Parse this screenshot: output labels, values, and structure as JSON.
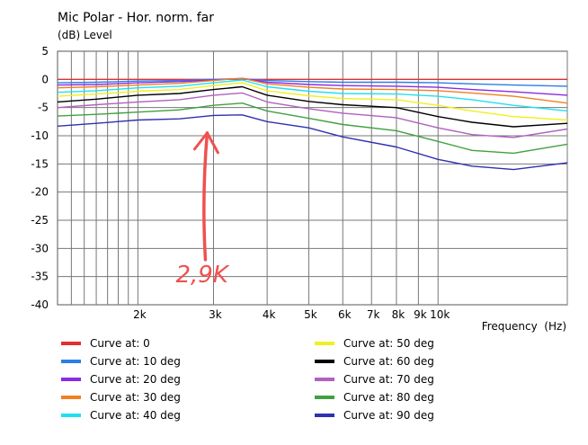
{
  "chart_data": {
    "type": "line",
    "title": "Mic Polar - Hor. norm. far",
    "ylabel": "(dB)  Level",
    "xlabel": "Frequency  (Hz)",
    "x_scale": "log",
    "xlim": [
      1300,
      20000
    ],
    "ylim": [
      -40,
      5
    ],
    "grid": true,
    "y_ticks": [
      5,
      0,
      -5,
      -10,
      -15,
      -20,
      -25,
      -30,
      -35,
      -40
    ],
    "x_tick_values": [
      2000,
      3000,
      4000,
      5000,
      6000,
      7000,
      8000,
      9000,
      10000
    ],
    "x_tick_labels": [
      "2k",
      "3k",
      "4k",
      "5k",
      "6k",
      "7k",
      "8k",
      "9k",
      "10k"
    ],
    "x_minor_ticks": [
      1400,
      1500,
      1600,
      1700,
      1800,
      1900,
      20000
    ],
    "legend_position": "bottom",
    "series": [
      {
        "name": "Curve at: 0",
        "color": "#e03030",
        "points": [
          [
            1300,
            0
          ],
          [
            2000,
            0
          ],
          [
            3000,
            0
          ],
          [
            4000,
            0
          ],
          [
            6000,
            0
          ],
          [
            10000,
            0
          ],
          [
            20000,
            0
          ]
        ]
      },
      {
        "name": "Curve at: 10 deg",
        "color": "#2a7ee6",
        "points": [
          [
            1300,
            -0.6
          ],
          [
            1600,
            -0.5
          ],
          [
            2000,
            -0.3
          ],
          [
            2500,
            -0.2
          ],
          [
            3000,
            0
          ],
          [
            3500,
            0.1
          ],
          [
            4000,
            -0.2
          ],
          [
            5000,
            -0.4
          ],
          [
            6000,
            -0.5
          ],
          [
            8000,
            -0.5
          ],
          [
            10000,
            -0.6
          ],
          [
            12000,
            -0.8
          ],
          [
            15000,
            -1.0
          ],
          [
            20000,
            -1.2
          ]
        ]
      },
      {
        "name": "Curve at: 20 deg",
        "color": "#8a2be2",
        "points": [
          [
            1300,
            -1.0
          ],
          [
            1600,
            -0.9
          ],
          [
            2000,
            -0.6
          ],
          [
            2500,
            -0.4
          ],
          [
            3000,
            -0.1
          ],
          [
            3500,
            0.2
          ],
          [
            4000,
            -0.5
          ],
          [
            5000,
            -0.9
          ],
          [
            6000,
            -1.1
          ],
          [
            8000,
            -1.2
          ],
          [
            10000,
            -1.4
          ],
          [
            12000,
            -1.8
          ],
          [
            15000,
            -2.2
          ],
          [
            20000,
            -2.8
          ]
        ]
      },
      {
        "name": "Curve at: 30 deg",
        "color": "#f08020",
        "points": [
          [
            1300,
            -1.5
          ],
          [
            1600,
            -1.3
          ],
          [
            2000,
            -1.0
          ],
          [
            2500,
            -0.7
          ],
          [
            3000,
            -0.2
          ],
          [
            3500,
            0.2
          ],
          [
            4000,
            -0.8
          ],
          [
            5000,
            -1.4
          ],
          [
            6000,
            -1.7
          ],
          [
            8000,
            -1.8
          ],
          [
            10000,
            -2.0
          ],
          [
            12000,
            -2.4
          ],
          [
            15000,
            -3.0
          ],
          [
            20000,
            -4.2
          ]
        ]
      },
      {
        "name": "Curve at: 40 deg",
        "color": "#20e0f0",
        "points": [
          [
            1300,
            -2.3
          ],
          [
            1600,
            -2.0
          ],
          [
            2000,
            -1.5
          ],
          [
            2500,
            -1.2
          ],
          [
            3000,
            -0.6
          ],
          [
            3500,
            -0.1
          ],
          [
            4000,
            -1.3
          ],
          [
            5000,
            -2.1
          ],
          [
            6000,
            -2.5
          ],
          [
            8000,
            -2.6
          ],
          [
            10000,
            -3.0
          ],
          [
            12000,
            -3.6
          ],
          [
            15000,
            -4.6
          ],
          [
            20000,
            -5.6
          ]
        ]
      },
      {
        "name": "Curve at: 50 deg",
        "color": "#f0f020",
        "points": [
          [
            1300,
            -3.0
          ],
          [
            1600,
            -2.6
          ],
          [
            2000,
            -2.1
          ],
          [
            2500,
            -1.8
          ],
          [
            3000,
            -1.1
          ],
          [
            3500,
            -0.6
          ],
          [
            4000,
            -2.0
          ],
          [
            5000,
            -2.9
          ],
          [
            6000,
            -3.4
          ],
          [
            8000,
            -3.6
          ],
          [
            10000,
            -4.6
          ],
          [
            12000,
            -5.6
          ],
          [
            15000,
            -6.6
          ],
          [
            20000,
            -7.2
          ]
        ]
      },
      {
        "name": "Curve at: 60 deg",
        "color": "#000000",
        "points": [
          [
            1300,
            -4.0
          ],
          [
            1600,
            -3.5
          ],
          [
            2000,
            -2.8
          ],
          [
            2500,
            -2.5
          ],
          [
            3000,
            -1.8
          ],
          [
            3500,
            -1.3
          ],
          [
            4000,
            -2.8
          ],
          [
            5000,
            -3.9
          ],
          [
            6000,
            -4.5
          ],
          [
            8000,
            -5.0
          ],
          [
            10000,
            -6.6
          ],
          [
            12000,
            -7.6
          ],
          [
            15000,
            -8.4
          ],
          [
            20000,
            -7.8
          ]
        ]
      },
      {
        "name": "Curve at: 70 deg",
        "color": "#b060c0",
        "points": [
          [
            1300,
            -5.0
          ],
          [
            1600,
            -4.5
          ],
          [
            2000,
            -4.0
          ],
          [
            2500,
            -3.6
          ],
          [
            3000,
            -2.8
          ],
          [
            3500,
            -2.4
          ],
          [
            4000,
            -4.0
          ],
          [
            5000,
            -5.2
          ],
          [
            6000,
            -6.0
          ],
          [
            8000,
            -6.8
          ],
          [
            10000,
            -8.6
          ],
          [
            12000,
            -9.8
          ],
          [
            15000,
            -10.3
          ],
          [
            20000,
            -8.8
          ]
        ]
      },
      {
        "name": "Curve at: 80 deg",
        "color": "#40a040",
        "points": [
          [
            1300,
            -6.5
          ],
          [
            1600,
            -6.2
          ],
          [
            2000,
            -5.8
          ],
          [
            2500,
            -5.4
          ],
          [
            3000,
            -4.6
          ],
          [
            3500,
            -4.2
          ],
          [
            4000,
            -5.6
          ],
          [
            5000,
            -6.9
          ],
          [
            6000,
            -8.0
          ],
          [
            8000,
            -9.1
          ],
          [
            10000,
            -11.0
          ],
          [
            12000,
            -12.6
          ],
          [
            15000,
            -13.1
          ],
          [
            20000,
            -11.5
          ]
        ]
      },
      {
        "name": "Curve at: 90 deg",
        "color": "#3030b0",
        "points": [
          [
            1300,
            -8.3
          ],
          [
            1600,
            -7.8
          ],
          [
            2000,
            -7.2
          ],
          [
            2500,
            -7.0
          ],
          [
            3000,
            -6.4
          ],
          [
            3500,
            -6.3
          ],
          [
            4000,
            -7.5
          ],
          [
            5000,
            -8.6
          ],
          [
            6000,
            -10.2
          ],
          [
            8000,
            -12.0
          ],
          [
            10000,
            -14.2
          ],
          [
            12000,
            -15.4
          ],
          [
            15000,
            -16.0
          ],
          [
            20000,
            -14.8
          ]
        ]
      }
    ],
    "annotation": {
      "text": "2,9K",
      "color": "#f05050",
      "arrow_x": 2900,
      "arrow_from_y": -32,
      "arrow_to_y": -9.5,
      "text_x": 2450,
      "text_y": -36
    }
  }
}
